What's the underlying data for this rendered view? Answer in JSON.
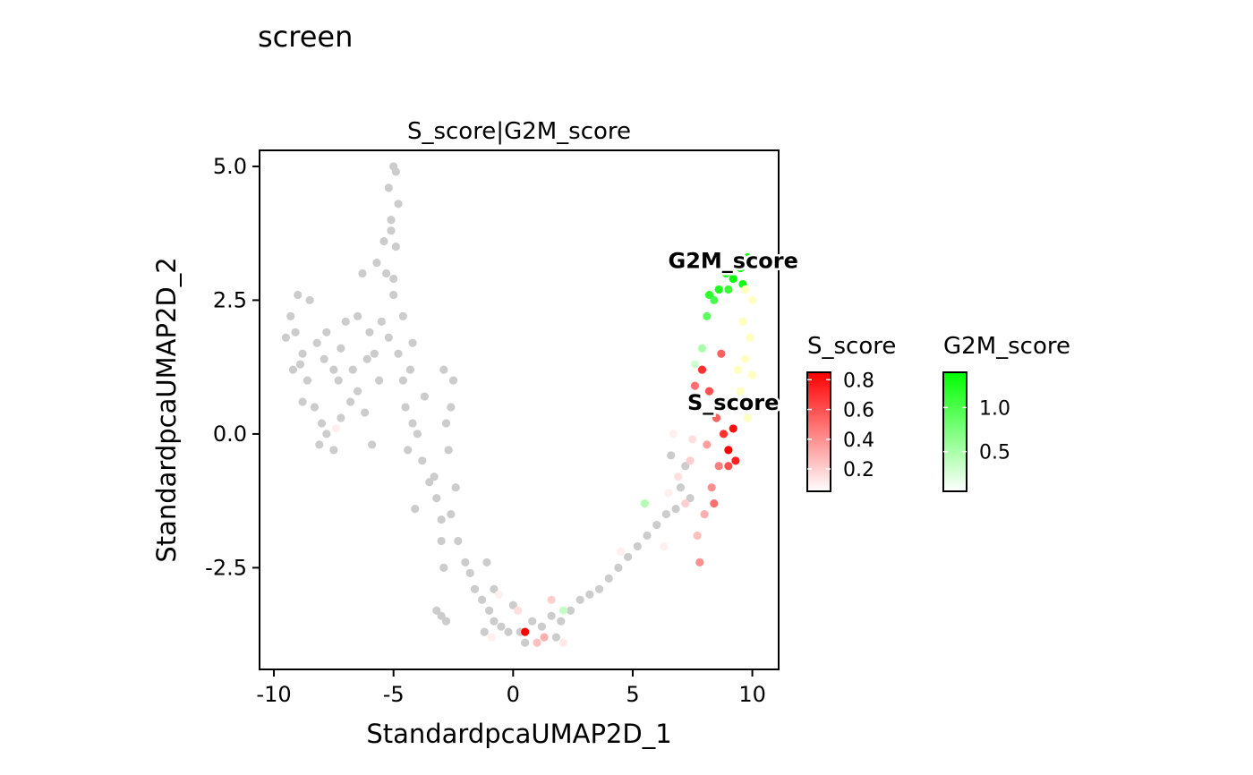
{
  "page": {
    "title": "screen"
  },
  "chart_data": {
    "type": "scatter",
    "title": "S_score|G2M_score",
    "xlabel": "StandardpcaUMAP2D_1",
    "ylabel": "StandardpcaUMAP2D_2",
    "xlim": [
      -10.6,
      11.1
    ],
    "ylim": [
      -4.4,
      5.3
    ],
    "x_ticks": [
      {
        "value": -10,
        "label": "-10"
      },
      {
        "value": -5,
        "label": "-5"
      },
      {
        "value": 0,
        "label": "0"
      },
      {
        "value": 5,
        "label": "5"
      },
      {
        "value": 10,
        "label": "10"
      }
    ],
    "y_ticks": [
      {
        "value": -2.5,
        "label": "-2.5"
      },
      {
        "value": 0,
        "label": "0.0"
      },
      {
        "value": 2.5,
        "label": "2.5"
      },
      {
        "value": 5,
        "label": "5.0"
      }
    ],
    "grid": false,
    "background_color": "#cccccc",
    "colors": {
      "S_score": "#ff0000",
      "G2M_score": "#00ff00",
      "overlap": "#ffffc0",
      "low": "#ffffff"
    },
    "feature_labels": [
      {
        "text": "G2M_score",
        "x": 9.2,
        "y": 3.1
      },
      {
        "text": "S_score",
        "x": 9.2,
        "y": 0.45
      }
    ],
    "legends": [
      {
        "title": "S_score",
        "gradient": [
          "#ffffff",
          "#ff0000"
        ],
        "range": [
          0.05,
          0.85
        ],
        "ticks": [
          {
            "value": 0.8,
            "label": "0.8"
          },
          {
            "value": 0.6,
            "label": "0.6"
          },
          {
            "value": 0.4,
            "label": "0.4"
          },
          {
            "value": 0.2,
            "label": "0.2"
          }
        ]
      },
      {
        "title": "G2M_score",
        "gradient": [
          "#ffffff",
          "#00ff00"
        ],
        "range": [
          0.05,
          1.4
        ],
        "ticks": [
          {
            "value": 1.0,
            "label": "1.0"
          },
          {
            "value": 0.5,
            "label": "0.5"
          }
        ]
      }
    ],
    "background_points": [
      [
        -9.3,
        2.2
      ],
      [
        -9.1,
        1.9
      ],
      [
        -8.8,
        1.5
      ],
      [
        -8.5,
        2.5
      ],
      [
        -8.2,
        1.7
      ],
      [
        -7.8,
        1.9
      ],
      [
        -7.5,
        1.2
      ],
      [
        -9.0,
        2.6
      ],
      [
        -8.6,
        1.0
      ],
      [
        -8.3,
        0.5
      ],
      [
        -8.0,
        0.2
      ],
      [
        -7.8,
        0.0
      ],
      [
        -8.1,
        -0.2
      ],
      [
        -7.5,
        -0.3
      ],
      [
        -7.3,
        1.0
      ],
      [
        -9.5,
        1.8
      ],
      [
        -8.9,
        1.3
      ],
      [
        -7.9,
        1.4
      ],
      [
        -7.0,
        2.1
      ],
      [
        -7.2,
        1.6
      ],
      [
        -6.7,
        1.2
      ],
      [
        -6.5,
        0.8
      ],
      [
        -6.2,
        0.4
      ],
      [
        -6.5,
        2.2
      ],
      [
        -6.8,
        0.6
      ],
      [
        -5.8,
        1.5
      ],
      [
        -6.0,
        1.9
      ],
      [
        -5.7,
        3.2
      ],
      [
        -5.3,
        3.0
      ],
      [
        -5.0,
        2.6
      ],
      [
        -5.5,
        2.1
      ],
      [
        -5.2,
        1.8
      ],
      [
        -4.8,
        1.5
      ],
      [
        -4.6,
        1.0
      ],
      [
        -5.0,
        2.9
      ],
      [
        -4.9,
        3.5
      ],
      [
        -5.1,
        4.0
      ],
      [
        -5.2,
        4.6
      ],
      [
        -4.9,
        4.9
      ],
      [
        -5.0,
        5.0
      ],
      [
        -4.8,
        4.3
      ],
      [
        -5.1,
        3.8
      ],
      [
        -5.4,
        3.6
      ],
      [
        -4.6,
        2.2
      ],
      [
        -4.3,
        1.2
      ],
      [
        -4.5,
        0.5
      ],
      [
        -4.2,
        0.2
      ],
      [
        -4.0,
        0.0
      ],
      [
        -4.4,
        -0.3
      ],
      [
        -3.8,
        -0.5
      ],
      [
        -3.5,
        -0.9
      ],
      [
        -3.2,
        -1.2
      ],
      [
        -3.0,
        -1.6
      ],
      [
        -3.3,
        -0.8
      ],
      [
        -3.0,
        -2.0
      ],
      [
        -2.8,
        0.2
      ],
      [
        -2.6,
        0.5
      ],
      [
        -2.5,
        1.0
      ],
      [
        -2.9,
        1.2
      ],
      [
        -2.7,
        -0.3
      ],
      [
        -2.4,
        -1.0
      ],
      [
        -2.6,
        -1.5
      ],
      [
        -2.3,
        -2.0
      ],
      [
        -2.0,
        -2.4
      ],
      [
        -1.8,
        -2.6
      ],
      [
        -1.6,
        -2.9
      ],
      [
        -1.3,
        -3.1
      ],
      [
        -1.0,
        -3.3
      ],
      [
        -0.8,
        -3.5
      ],
      [
        -0.5,
        -3.6
      ],
      [
        -0.2,
        -3.7
      ],
      [
        0.3,
        -3.7
      ],
      [
        0.8,
        -3.5
      ],
      [
        1.2,
        -3.6
      ],
      [
        1.6,
        -3.4
      ],
      [
        2.0,
        -3.5
      ],
      [
        2.4,
        -3.3
      ],
      [
        2.8,
        -3.1
      ],
      [
        3.2,
        -3.0
      ],
      [
        3.6,
        -2.9
      ],
      [
        4.0,
        -2.7
      ],
      [
        4.4,
        -2.5
      ],
      [
        4.8,
        -2.3
      ],
      [
        5.2,
        -2.1
      ],
      [
        5.6,
        -1.9
      ],
      [
        6.0,
        -1.7
      ],
      [
        6.4,
        -1.5
      ],
      [
        6.8,
        -1.4
      ],
      [
        7.0,
        -1.0
      ],
      [
        7.2,
        -0.6
      ],
      [
        7.4,
        -1.2
      ],
      [
        6.6,
        -0.4
      ],
      [
        -3.0,
        -3.4
      ],
      [
        -2.8,
        -3.5
      ],
      [
        -3.2,
        -3.3
      ],
      [
        -1.2,
        -3.7
      ],
      [
        -0.8,
        -2.9
      ],
      [
        0.0,
        -3.2
      ],
      [
        -6.1,
        1.4
      ],
      [
        -4.2,
        1.7
      ],
      [
        -6.3,
        3.0
      ],
      [
        -5.6,
        1.0
      ],
      [
        -7.2,
        0.3
      ],
      [
        -3.7,
        0.7
      ],
      [
        -2.9,
        -2.5
      ],
      [
        -1.1,
        -2.4
      ],
      [
        0.5,
        -3.9
      ],
      [
        1.8,
        -3.8
      ],
      [
        -8.8,
        0.6
      ],
      [
        -9.2,
        1.2
      ],
      [
        -5.9,
        -0.2
      ],
      [
        -4.1,
        -1.4
      ]
    ],
    "s_score_points": [
      [
        7.6,
        0.9,
        0.5
      ],
      [
        7.9,
        1.2,
        0.7
      ],
      [
        8.2,
        0.8,
        0.6
      ],
      [
        8.5,
        0.3,
        0.55
      ],
      [
        8.8,
        0.0,
        0.7
      ],
      [
        9.0,
        -0.3,
        0.85
      ],
      [
        9.2,
        0.1,
        0.8
      ],
      [
        8.6,
        -0.6,
        0.45
      ],
      [
        8.3,
        -1.0,
        0.4
      ],
      [
        8.0,
        -1.5,
        0.3
      ],
      [
        7.7,
        -1.9,
        0.25
      ],
      [
        7.2,
        -1.3,
        0.2
      ],
      [
        6.9,
        -0.8,
        0.15
      ],
      [
        6.5,
        -1.1,
        0.1
      ],
      [
        8.7,
        1.5,
        0.55
      ],
      [
        9.3,
        -0.5,
        0.75
      ],
      [
        8.1,
        -0.2,
        0.35
      ],
      [
        7.4,
        -0.5,
        0.2
      ],
      [
        6.3,
        -2.1,
        0.1
      ],
      [
        0.5,
        -3.7,
        0.85
      ],
      [
        1.0,
        -3.9,
        0.25
      ],
      [
        0.2,
        -3.3,
        0.15
      ],
      [
        -0.6,
        -3.0,
        0.1
      ],
      [
        1.6,
        -3.1,
        0.2
      ],
      [
        1.3,
        -3.8,
        0.3
      ],
      [
        2.1,
        -3.9,
        0.12
      ],
      [
        -0.9,
        -3.8,
        0.1
      ],
      [
        -7.4,
        0.1,
        0.1
      ],
      [
        4.5,
        -2.2,
        0.1
      ],
      [
        7.8,
        -2.4,
        0.4
      ],
      [
        9.0,
        -0.6,
        0.6
      ],
      [
        8.4,
        -1.3,
        0.5
      ],
      [
        7.5,
        -0.1,
        0.15
      ],
      [
        6.7,
        0.0,
        0.1
      ],
      [
        8.9,
        0.6,
        0.35
      ]
    ],
    "g2m_score_points": [
      [
        9.8,
        3.3,
        1.4
      ],
      [
        9.5,
        3.1,
        1.3
      ],
      [
        9.2,
        2.9,
        1.35
      ],
      [
        8.9,
        3.0,
        1.2
      ],
      [
        8.6,
        2.7,
        1.25
      ],
      [
        9.0,
        2.7,
        1.1
      ],
      [
        8.4,
        2.5,
        1.0
      ],
      [
        8.1,
        2.2,
        0.9
      ],
      [
        7.9,
        1.6,
        0.5
      ],
      [
        7.6,
        1.3,
        0.3
      ],
      [
        5.5,
        -1.3,
        0.45
      ],
      [
        2.1,
        -3.3,
        0.35
      ],
      [
        9.6,
        2.8,
        1.3
      ],
      [
        8.2,
        2.6,
        1.15
      ]
    ],
    "both_points": [
      [
        9.6,
        2.1
      ],
      [
        9.9,
        1.8
      ],
      [
        9.7,
        1.4
      ],
      [
        10.0,
        1.1
      ],
      [
        9.5,
        0.8
      ],
      [
        9.9,
        0.6
      ],
      [
        9.4,
        1.2
      ],
      [
        10.0,
        2.5
      ],
      [
        9.8,
        0.3
      ],
      [
        9.7,
        2.7
      ]
    ]
  }
}
